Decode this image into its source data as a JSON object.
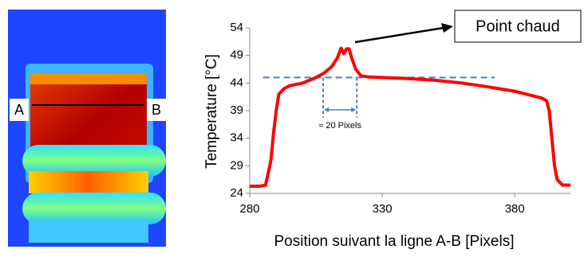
{
  "image_labels": [
    "A",
    "B"
  ],
  "chart_data": {
    "type": "line",
    "xlabel": "Position suivant la ligne A-B [Pixels]",
    "ylabel": "Temperature [°C]",
    "x": [
      280,
      284,
      286,
      288,
      289,
      290,
      291,
      293,
      295,
      300,
      305,
      308,
      311,
      313,
      314.5,
      315.5,
      316.5,
      317.5,
      318.5,
      320,
      322,
      325,
      330,
      340,
      350,
      360,
      370,
      380,
      390,
      392,
      393,
      394,
      395,
      396,
      398,
      401
    ],
    "series": [
      {
        "name": "Temperature",
        "color": "#ff0000",
        "values": [
          25.3,
          25.3,
          25.5,
          30,
          35,
          39,
          42,
          43,
          43.5,
          44,
          45,
          45.8,
          47,
          48.5,
          50.3,
          49.3,
          50.2,
          50.2,
          48.5,
          46.5,
          45.3,
          45.1,
          45,
          44.8,
          44.5,
          44,
          43.3,
          42.5,
          41.3,
          40.8,
          39,
          34,
          29,
          26.5,
          25.5,
          25.5
        ]
      }
    ],
    "xlim": [
      280,
      401
    ],
    "xticks": [
      280,
      330,
      380
    ],
    "ylim": [
      24,
      54
    ],
    "yticks": [
      24,
      29,
      34,
      39,
      44,
      49,
      54
    ],
    "hline": {
      "y": 45,
      "x": [
        285,
        372.5
      ],
      "color": "#4a7ebb"
    },
    "span": {
      "x": [
        307.7,
        320.4
      ],
      "y": [
        37.7,
        45
      ],
      "label": "≈ 20 Pixels"
    },
    "annotation": "Point chaud"
  }
}
